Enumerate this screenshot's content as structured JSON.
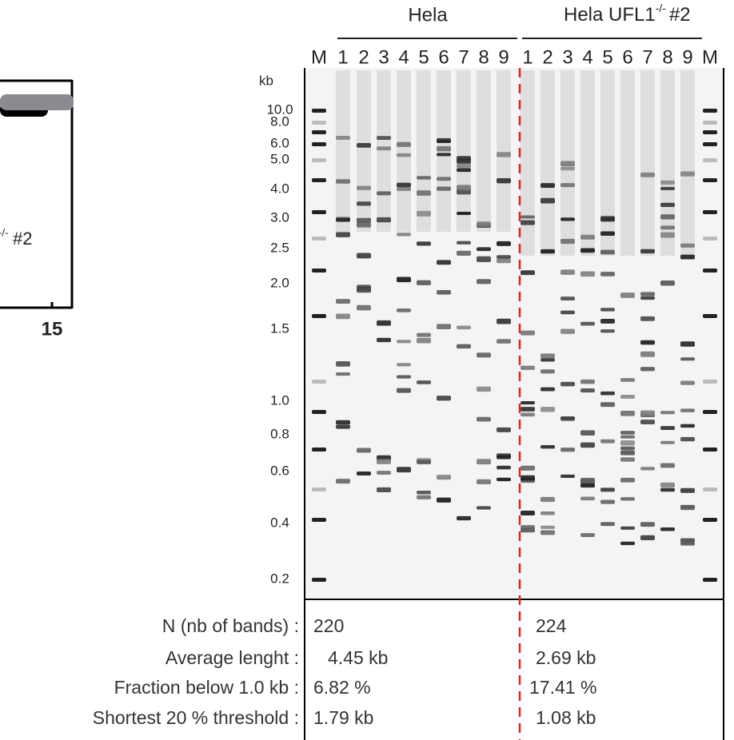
{
  "left_fragment": {
    "superscript": "-/-",
    "text": "#2",
    "tick": "15"
  },
  "gel": {
    "groups": [
      {
        "name": "Hela"
      },
      {
        "name": "Hela UFL1",
        "superscript": "-/-",
        "suffix": "#2"
      }
    ],
    "lanes_left": [
      "M",
      "1",
      "2",
      "3",
      "4",
      "5",
      "6",
      "7",
      "8",
      "9"
    ],
    "lanes_right": [
      "1",
      "2",
      "3",
      "4",
      "5",
      "6",
      "7",
      "8",
      "9",
      "M"
    ],
    "size_unit": "kb",
    "sizes": [
      "10.0",
      "8.0",
      "6.0",
      "5.0",
      "4.0",
      "3.0",
      "2.5",
      "2.0",
      "1.5",
      "1.0",
      "0.8",
      "0.6",
      "0.4",
      "0.2"
    ]
  },
  "table": {
    "rows": [
      [
        "N (nb of bands) :",
        "220",
        "224"
      ],
      [
        "Average lenght :",
        "4.45 kb",
        "2.69 kb"
      ],
      [
        "Fraction below 1.0 kb :",
        "6.82 %",
        "17.41 %"
      ],
      [
        "Shortest 20 % threshold :",
        "1.79 kb",
        "1.08 kb"
      ]
    ]
  }
}
